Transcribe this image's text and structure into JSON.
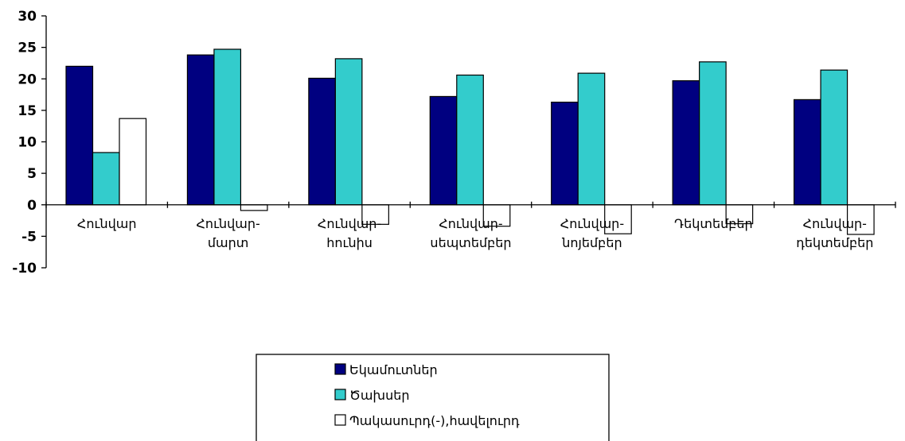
{
  "chart_data": {
    "type": "bar",
    "categories": [
      [
        "Հունվար"
      ],
      [
        "Հունվար-",
        "մարտ"
      ],
      [
        "Հունվար-",
        "հունիս"
      ],
      [
        "Հունվար-",
        "սեպտեմբեր"
      ],
      [
        "Հունվար-",
        "նոյեմբեր"
      ],
      [
        "Դեկտեմբեր"
      ],
      [
        "Հունվար-",
        "դեկտեմբեր"
      ]
    ],
    "series": [
      {
        "name": "Եկամուտներ",
        "color": "#000080",
        "values": [
          22,
          23.8,
          20.1,
          17.2,
          16.3,
          19.7,
          16.7
        ]
      },
      {
        "name": "Ծախսեր",
        "color": "#33CCCC",
        "values": [
          8.3,
          24.7,
          23.2,
          20.6,
          20.9,
          22.7,
          21.4
        ]
      },
      {
        "name": "Պակասուրդ(-),հավելուրդ",
        "color": "#FFFFFF",
        "values": [
          13.7,
          -0.9,
          -3.1,
          -3.4,
          -4.6,
          -3.0,
          -4.7
        ]
      }
    ],
    "ylim": [
      -10,
      30
    ],
    "yticks": [
      30,
      25,
      20,
      15,
      10,
      5,
      0,
      -5,
      -10
    ],
    "title": "",
    "xlabel": "",
    "ylabel": "",
    "legend_position": "bottom-center",
    "grid": false
  }
}
